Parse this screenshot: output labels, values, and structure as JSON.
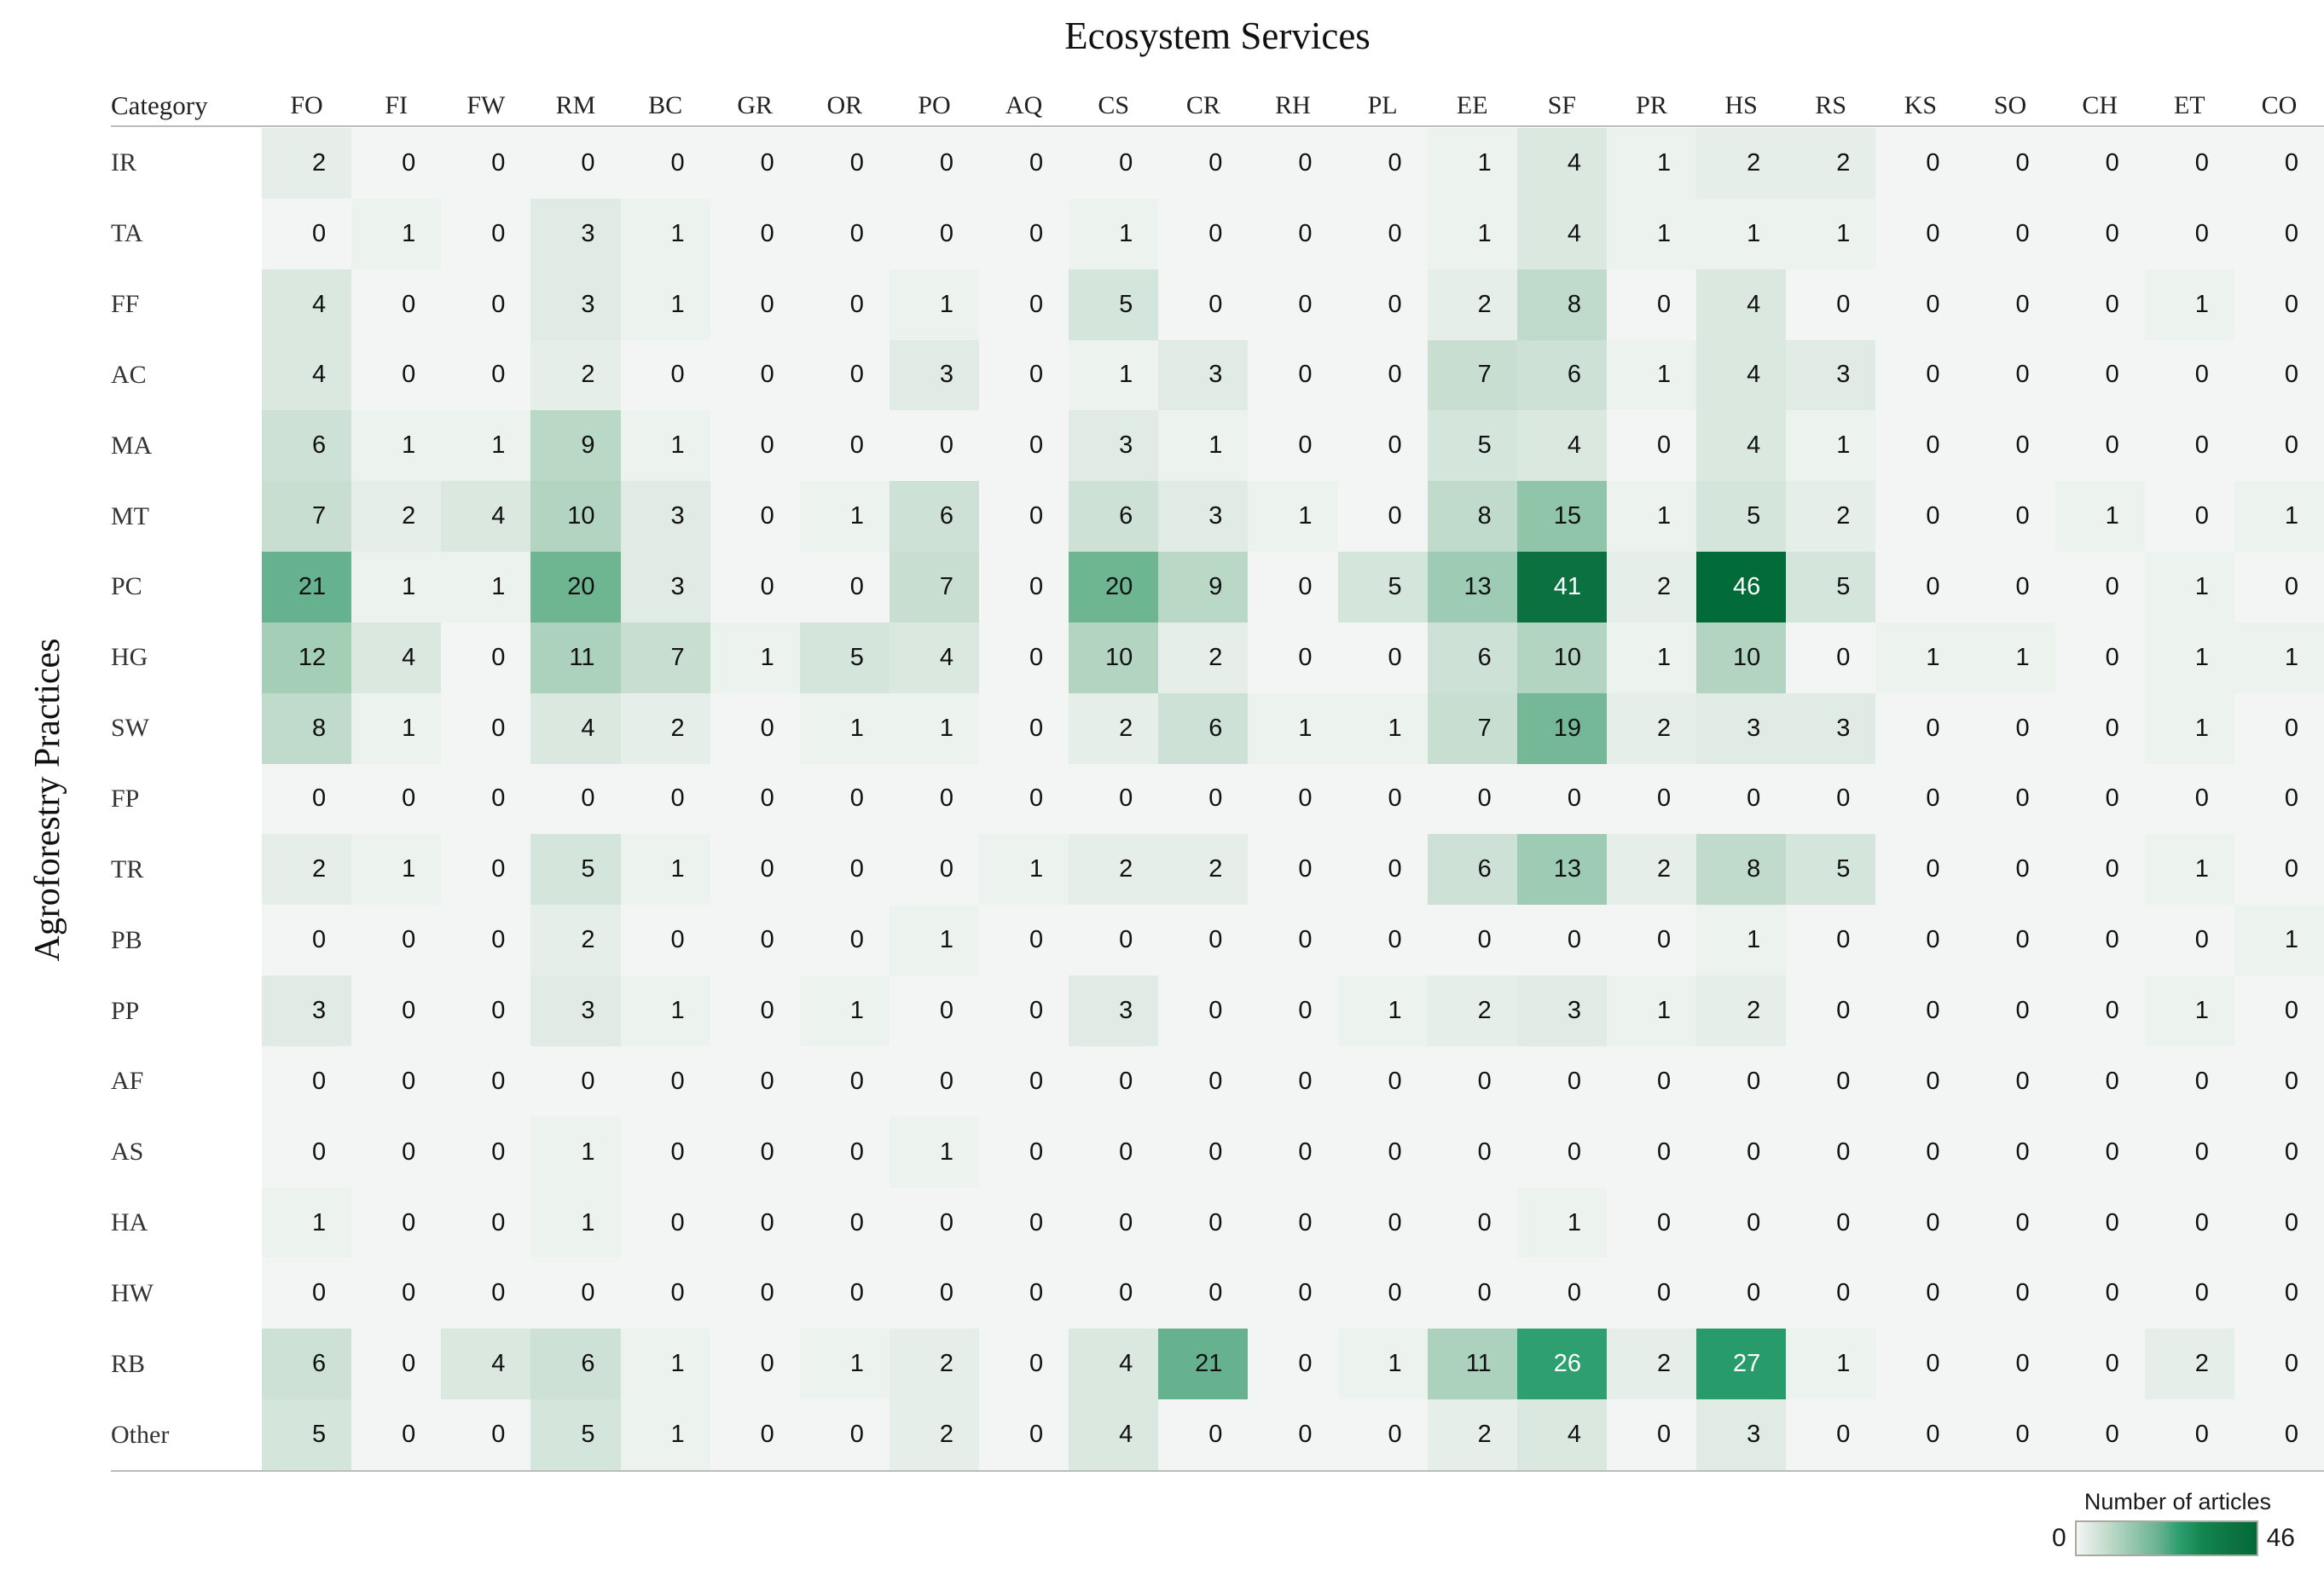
{
  "chart_data": {
    "type": "heatmap",
    "title": "Ecosystem Services",
    "xlabel": "Ecosystem Services",
    "ylabel": "Agroforestry Practices",
    "corner_header": "Category",
    "columns": [
      "FO",
      "FI",
      "FW",
      "RM",
      "BC",
      "GR",
      "OR",
      "PO",
      "AQ",
      "CS",
      "CR",
      "RH",
      "PL",
      "EE",
      "SF",
      "PR",
      "HS",
      "RS",
      "KS",
      "SO",
      "CH",
      "ET",
      "CO"
    ],
    "rows": [
      "IR",
      "TA",
      "FF",
      "AC",
      "MA",
      "MT",
      "PC",
      "HG",
      "SW",
      "FP",
      "TR",
      "PB",
      "PP",
      "AF",
      "AS",
      "HA",
      "HW",
      "RB",
      "Other"
    ],
    "values": [
      [
        2,
        0,
        0,
        0,
        0,
        0,
        0,
        0,
        0,
        0,
        0,
        0,
        0,
        1,
        4,
        1,
        2,
        2,
        0,
        0,
        0,
        0,
        0
      ],
      [
        0,
        1,
        0,
        3,
        1,
        0,
        0,
        0,
        0,
        1,
        0,
        0,
        0,
        1,
        4,
        1,
        1,
        1,
        0,
        0,
        0,
        0,
        0
      ],
      [
        4,
        0,
        0,
        3,
        1,
        0,
        0,
        1,
        0,
        5,
        0,
        0,
        0,
        2,
        8,
        0,
        4,
        0,
        0,
        0,
        0,
        1,
        0
      ],
      [
        4,
        0,
        0,
        2,
        0,
        0,
        0,
        3,
        0,
        1,
        3,
        0,
        0,
        7,
        6,
        1,
        4,
        3,
        0,
        0,
        0,
        0,
        0
      ],
      [
        6,
        1,
        1,
        9,
        1,
        0,
        0,
        0,
        0,
        3,
        1,
        0,
        0,
        5,
        4,
        0,
        4,
        1,
        0,
        0,
        0,
        0,
        0
      ],
      [
        7,
        2,
        4,
        10,
        3,
        0,
        1,
        6,
        0,
        6,
        3,
        1,
        0,
        8,
        15,
        1,
        5,
        2,
        0,
        0,
        1,
        0,
        1
      ],
      [
        21,
        1,
        1,
        20,
        3,
        0,
        0,
        7,
        0,
        20,
        9,
        0,
        5,
        13,
        41,
        2,
        46,
        5,
        0,
        0,
        0,
        1,
        0
      ],
      [
        12,
        4,
        0,
        11,
        7,
        1,
        5,
        4,
        0,
        10,
        2,
        0,
        0,
        6,
        10,
        1,
        10,
        0,
        1,
        1,
        0,
        1,
        1
      ],
      [
        8,
        1,
        0,
        4,
        2,
        0,
        1,
        1,
        0,
        2,
        6,
        1,
        1,
        7,
        19,
        2,
        3,
        3,
        0,
        0,
        0,
        1,
        0
      ],
      [
        0,
        0,
        0,
        0,
        0,
        0,
        0,
        0,
        0,
        0,
        0,
        0,
        0,
        0,
        0,
        0,
        0,
        0,
        0,
        0,
        0,
        0,
        0
      ],
      [
        2,
        1,
        0,
        5,
        1,
        0,
        0,
        0,
        1,
        2,
        2,
        0,
        0,
        6,
        13,
        2,
        8,
        5,
        0,
        0,
        0,
        1,
        0
      ],
      [
        0,
        0,
        0,
        2,
        0,
        0,
        0,
        1,
        0,
        0,
        0,
        0,
        0,
        0,
        0,
        0,
        1,
        0,
        0,
        0,
        0,
        0,
        1
      ],
      [
        3,
        0,
        0,
        3,
        1,
        0,
        1,
        0,
        0,
        3,
        0,
        0,
        1,
        2,
        3,
        1,
        2,
        0,
        0,
        0,
        0,
        1,
        0
      ],
      [
        0,
        0,
        0,
        0,
        0,
        0,
        0,
        0,
        0,
        0,
        0,
        0,
        0,
        0,
        0,
        0,
        0,
        0,
        0,
        0,
        0,
        0,
        0
      ],
      [
        0,
        0,
        0,
        1,
        0,
        0,
        0,
        1,
        0,
        0,
        0,
        0,
        0,
        0,
        0,
        0,
        0,
        0,
        0,
        0,
        0,
        0,
        0
      ],
      [
        1,
        0,
        0,
        1,
        0,
        0,
        0,
        0,
        0,
        0,
        0,
        0,
        0,
        0,
        1,
        0,
        0,
        0,
        0,
        0,
        0,
        0,
        0
      ],
      [
        0,
        0,
        0,
        0,
        0,
        0,
        0,
        0,
        0,
        0,
        0,
        0,
        0,
        0,
        0,
        0,
        0,
        0,
        0,
        0,
        0,
        0,
        0
      ],
      [
        6,
        0,
        4,
        6,
        1,
        0,
        1,
        2,
        0,
        4,
        21,
        0,
        1,
        11,
        26,
        2,
        27,
        1,
        0,
        0,
        0,
        2,
        0
      ],
      [
        5,
        0,
        0,
        5,
        1,
        0,
        0,
        2,
        0,
        4,
        0,
        0,
        0,
        2,
        4,
        0,
        3,
        0,
        0,
        0,
        0,
        0,
        0
      ]
    ],
    "vmin": 0,
    "vmax": 46,
    "grid": false,
    "legend_position": "bottom-right",
    "legend": {
      "title": "Number of articles",
      "min": "0",
      "max": "46"
    },
    "colormap": {
      "stops": [
        [
          0.0,
          "#f2f5f3"
        ],
        [
          0.1,
          "#d7e6dd"
        ],
        [
          0.2,
          "#b8d7c5"
        ],
        [
          0.33,
          "#8fc4a8"
        ],
        [
          0.46,
          "#66b18d"
        ],
        [
          0.57,
          "#2b9e6e"
        ],
        [
          0.7,
          "#13854f"
        ],
        [
          0.89,
          "#0b7140"
        ],
        [
          1.0,
          "#006b38"
        ]
      ],
      "text_dark": "#111111",
      "text_light": "#ffffff",
      "light_text_threshold": 0.5
    }
  }
}
